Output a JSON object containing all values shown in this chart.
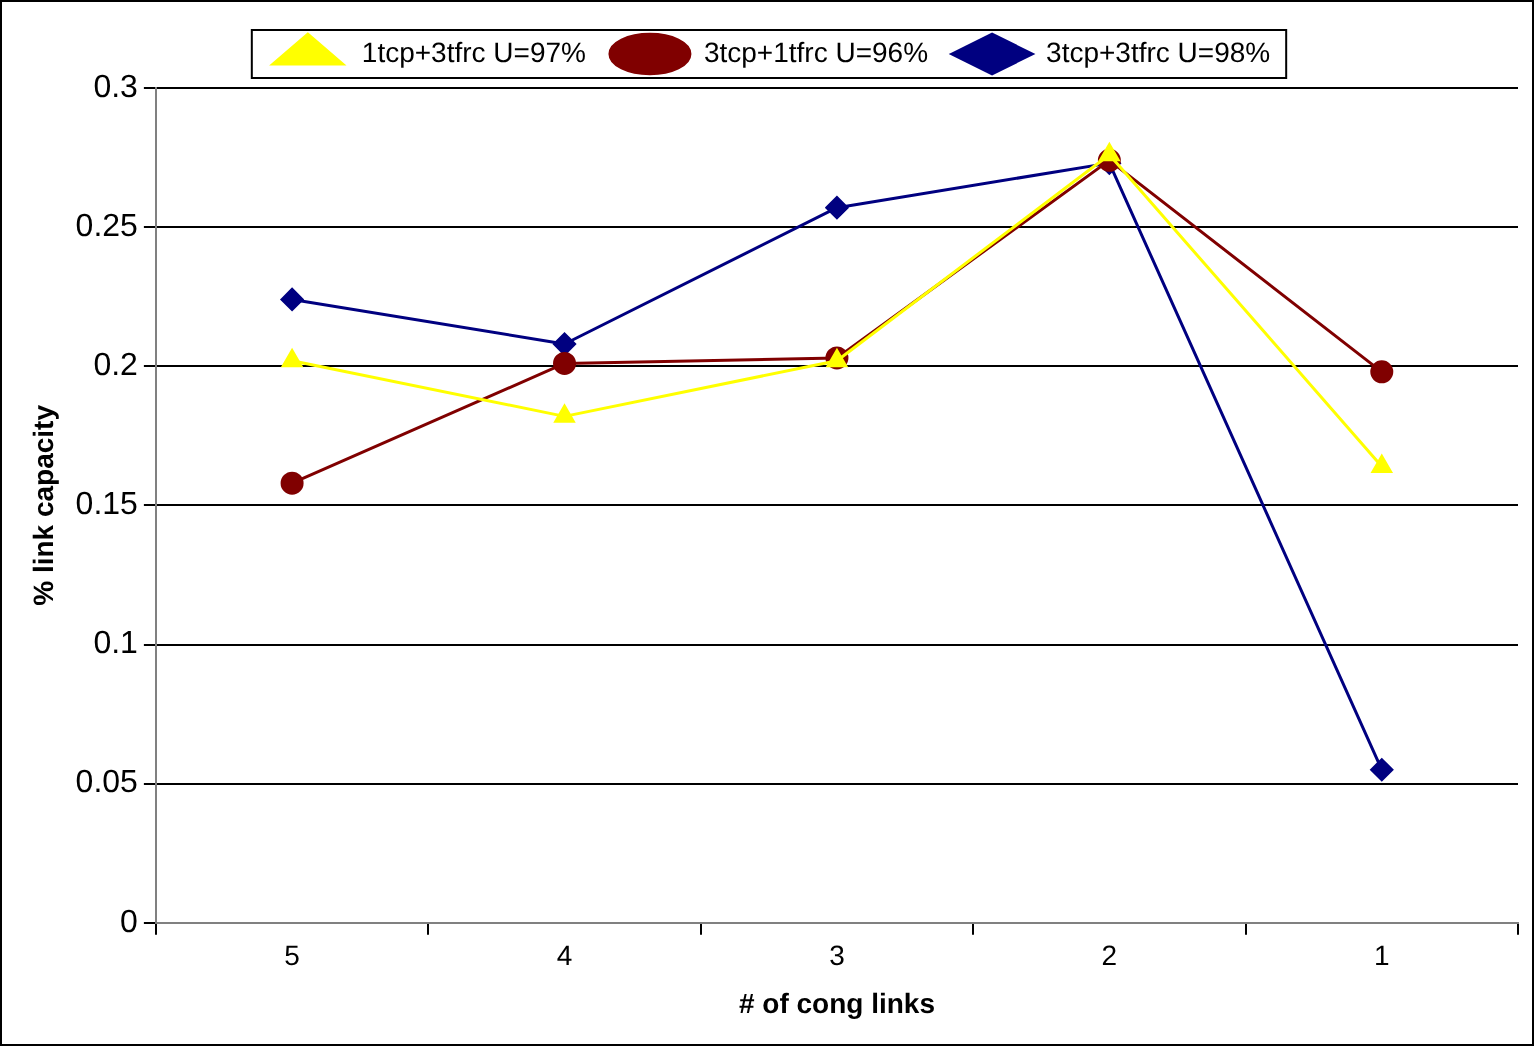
{
  "chart_data": {
    "type": "line",
    "xlabel": "# of cong links",
    "ylabel": "% link capacity",
    "categories": [
      "5",
      "4",
      "3",
      "2",
      "1"
    ],
    "series": [
      {
        "name": "1tcp+3tfrc U=97%",
        "color": "#ffff00",
        "marker": "triangle",
        "values": [
          0.202,
          0.182,
          0.202,
          0.276,
          0.164
        ]
      },
      {
        "name": "3tcp+1tfrc U=96%",
        "color": "#800000",
        "marker": "circle",
        "values": [
          0.158,
          0.201,
          0.203,
          0.274,
          0.198
        ]
      },
      {
        "name": "3tcp+3tfrc U=98%",
        "color": "#000080",
        "marker": "diamond",
        "values": [
          0.224,
          0.208,
          0.257,
          0.273,
          0.055
        ]
      }
    ],
    "ylim": [
      0,
      0.3
    ],
    "yticks": [
      0,
      0.05,
      0.1,
      0.15,
      0.2,
      0.25,
      0.3
    ],
    "grid": "y",
    "legend": "top"
  }
}
